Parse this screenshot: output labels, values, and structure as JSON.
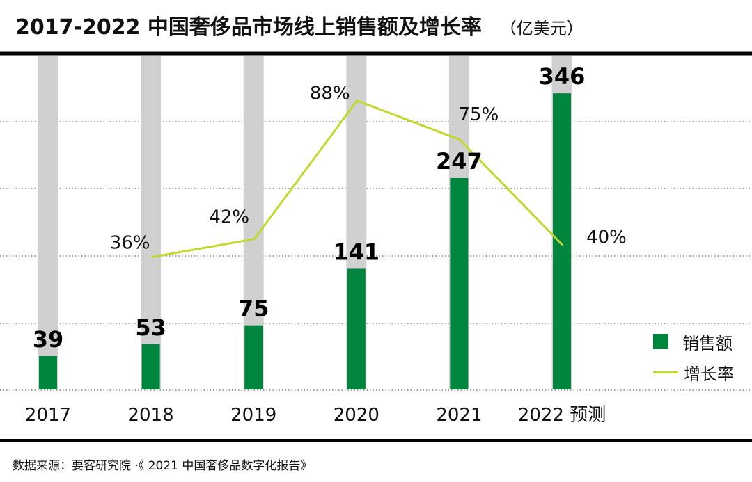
{
  "header": {
    "title": "2017-2022 中国奢侈品市场线上销售额及增长率",
    "unit": "（亿美元）"
  },
  "source": "数据来源：要客研究院 ·《 2021 中国奢侈品数字化报告》",
  "colors": {
    "bar": "#00853f",
    "background_bar": "#d0d0d0",
    "line": "#c1d82f",
    "rule": "#000000",
    "grid": "#444444"
  },
  "chart_data": {
    "type": "bar",
    "categories": [
      "2017",
      "2018",
      "2019",
      "2020",
      "2021",
      "2022 预测"
    ],
    "series": [
      {
        "name": "销售额",
        "type": "bar",
        "values": [
          39,
          53,
          75,
          141,
          247,
          346
        ],
        "labels": [
          "39",
          "53",
          "75",
          "141",
          "247",
          "346"
        ]
      },
      {
        "name": "增长率",
        "type": "line",
        "values": [
          null,
          36,
          42,
          88,
          75,
          40
        ],
        "labels": [
          "",
          "36%",
          "42%",
          "88%",
          "75%",
          "40%"
        ]
      }
    ],
    "ylim_sales": [
      0,
      390
    ],
    "ylim_growth": [
      0,
      100
    ],
    "grid": true,
    "legend": "right"
  }
}
